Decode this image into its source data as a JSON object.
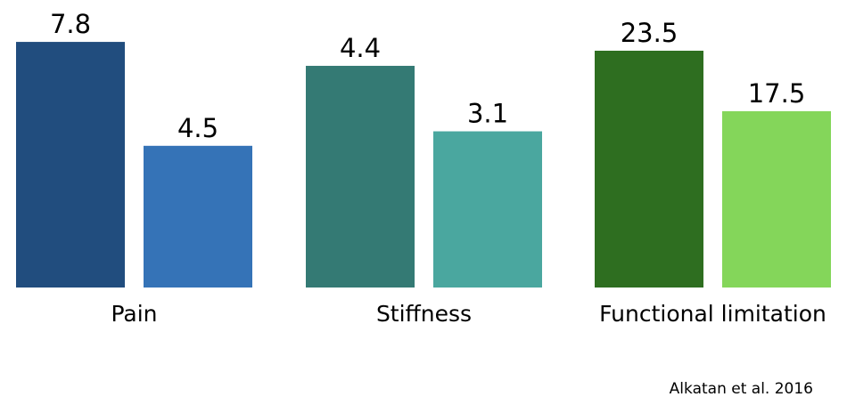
{
  "chart_data": [
    {
      "type": "bar",
      "title": "Pain",
      "values": [
        7.8,
        4.5
      ],
      "colors": [
        "#214d7e",
        "#3573b7"
      ],
      "ylim": [
        0,
        8
      ]
    },
    {
      "type": "bar",
      "title": "Stiffness",
      "values": [
        4.4,
        3.1
      ],
      "colors": [
        "#347a74",
        "#4aa79f"
      ],
      "ylim": [
        0,
        5
      ]
    },
    {
      "type": "bar",
      "title": "Functional limitation",
      "values": [
        23.5,
        17.5
      ],
      "colors": [
        "#2e6e20",
        "#84d65a"
      ],
      "ylim": [
        0,
        25
      ]
    }
  ],
  "source": "Alkatan et al. 2016"
}
